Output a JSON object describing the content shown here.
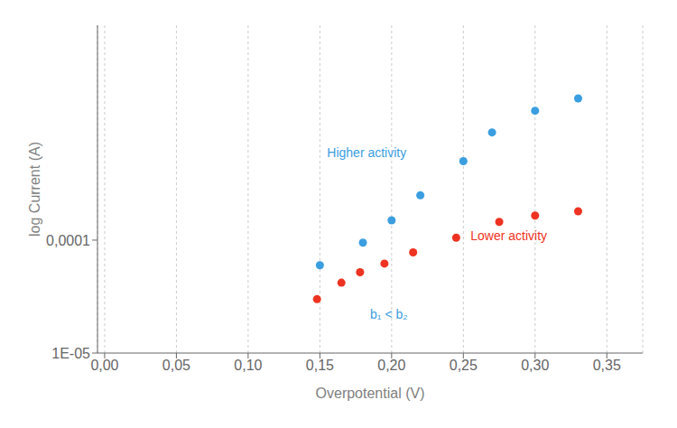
{
  "chart_data": {
    "type": "scatter",
    "xlabel": "Overpotential (V)",
    "ylabel": "log Current (A)",
    "log": "y",
    "grid": "x",
    "xlim": [
      -0.005,
      0.375
    ],
    "ylim": [
      1e-05,
      0.008
    ],
    "xticks": [
      {
        "value": 0.0,
        "label": "0,00"
      },
      {
        "value": 0.05,
        "label": "0,05"
      },
      {
        "value": 0.1,
        "label": "0,10"
      },
      {
        "value": 0.15,
        "label": "0,15"
      },
      {
        "value": 0.2,
        "label": "0,20"
      },
      {
        "value": 0.25,
        "label": "0,25"
      },
      {
        "value": 0.3,
        "label": "0,30"
      },
      {
        "value": 0.35,
        "label": "0,35"
      }
    ],
    "yticks": [
      {
        "value": 1e-05,
        "label": "1E-05"
      },
      {
        "value": 0.0001,
        "label": "0,0001"
      }
    ],
    "series": [
      {
        "color": "#3B9EE0",
        "x": [
          0.15,
          0.18,
          0.2,
          0.22,
          0.25,
          0.27,
          0.3,
          0.33
        ],
        "values": [
          6e-05,
          9.5e-05,
          0.00015,
          0.00025,
          0.0005,
          0.0009,
          0.0014,
          0.0018
        ]
      },
      {
        "color": "#EE3322",
        "x": [
          0.148,
          0.165,
          0.178,
          0.195,
          0.215,
          0.245,
          0.275,
          0.3,
          0.33
        ],
        "values": [
          3e-05,
          4.2e-05,
          5.2e-05,
          6.2e-05,
          7.8e-05,
          0.000105,
          0.000145,
          0.000165,
          0.00018
        ]
      }
    ],
    "annotations": [
      {
        "text": "Higher activity",
        "x": 0.155,
        "y": 0.0006,
        "color": "#3B9EE0"
      },
      {
        "text": "Lower activity",
        "x": 0.255,
        "y": 0.00011,
        "color": "#EE3322"
      },
      {
        "text": "b₁ < b₂",
        "x": 0.185,
        "y": 2.2e-05,
        "color": "#3B9EE0"
      }
    ]
  }
}
